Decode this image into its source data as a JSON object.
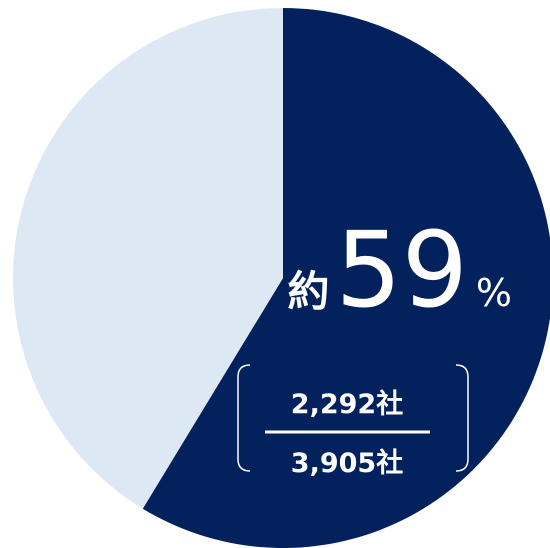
{
  "chart_data": {
    "type": "pie",
    "slices": [
      {
        "value": 2292,
        "color": "#03215d"
      },
      {
        "value": 1613,
        "color": "#dde8f5"
      }
    ],
    "labels": {
      "prefix": "約",
      "percent_value": "59",
      "percent_sign": "%",
      "numerator": "2,292社",
      "denominator": "3,905社"
    },
    "label_color": "#ffffff"
  }
}
